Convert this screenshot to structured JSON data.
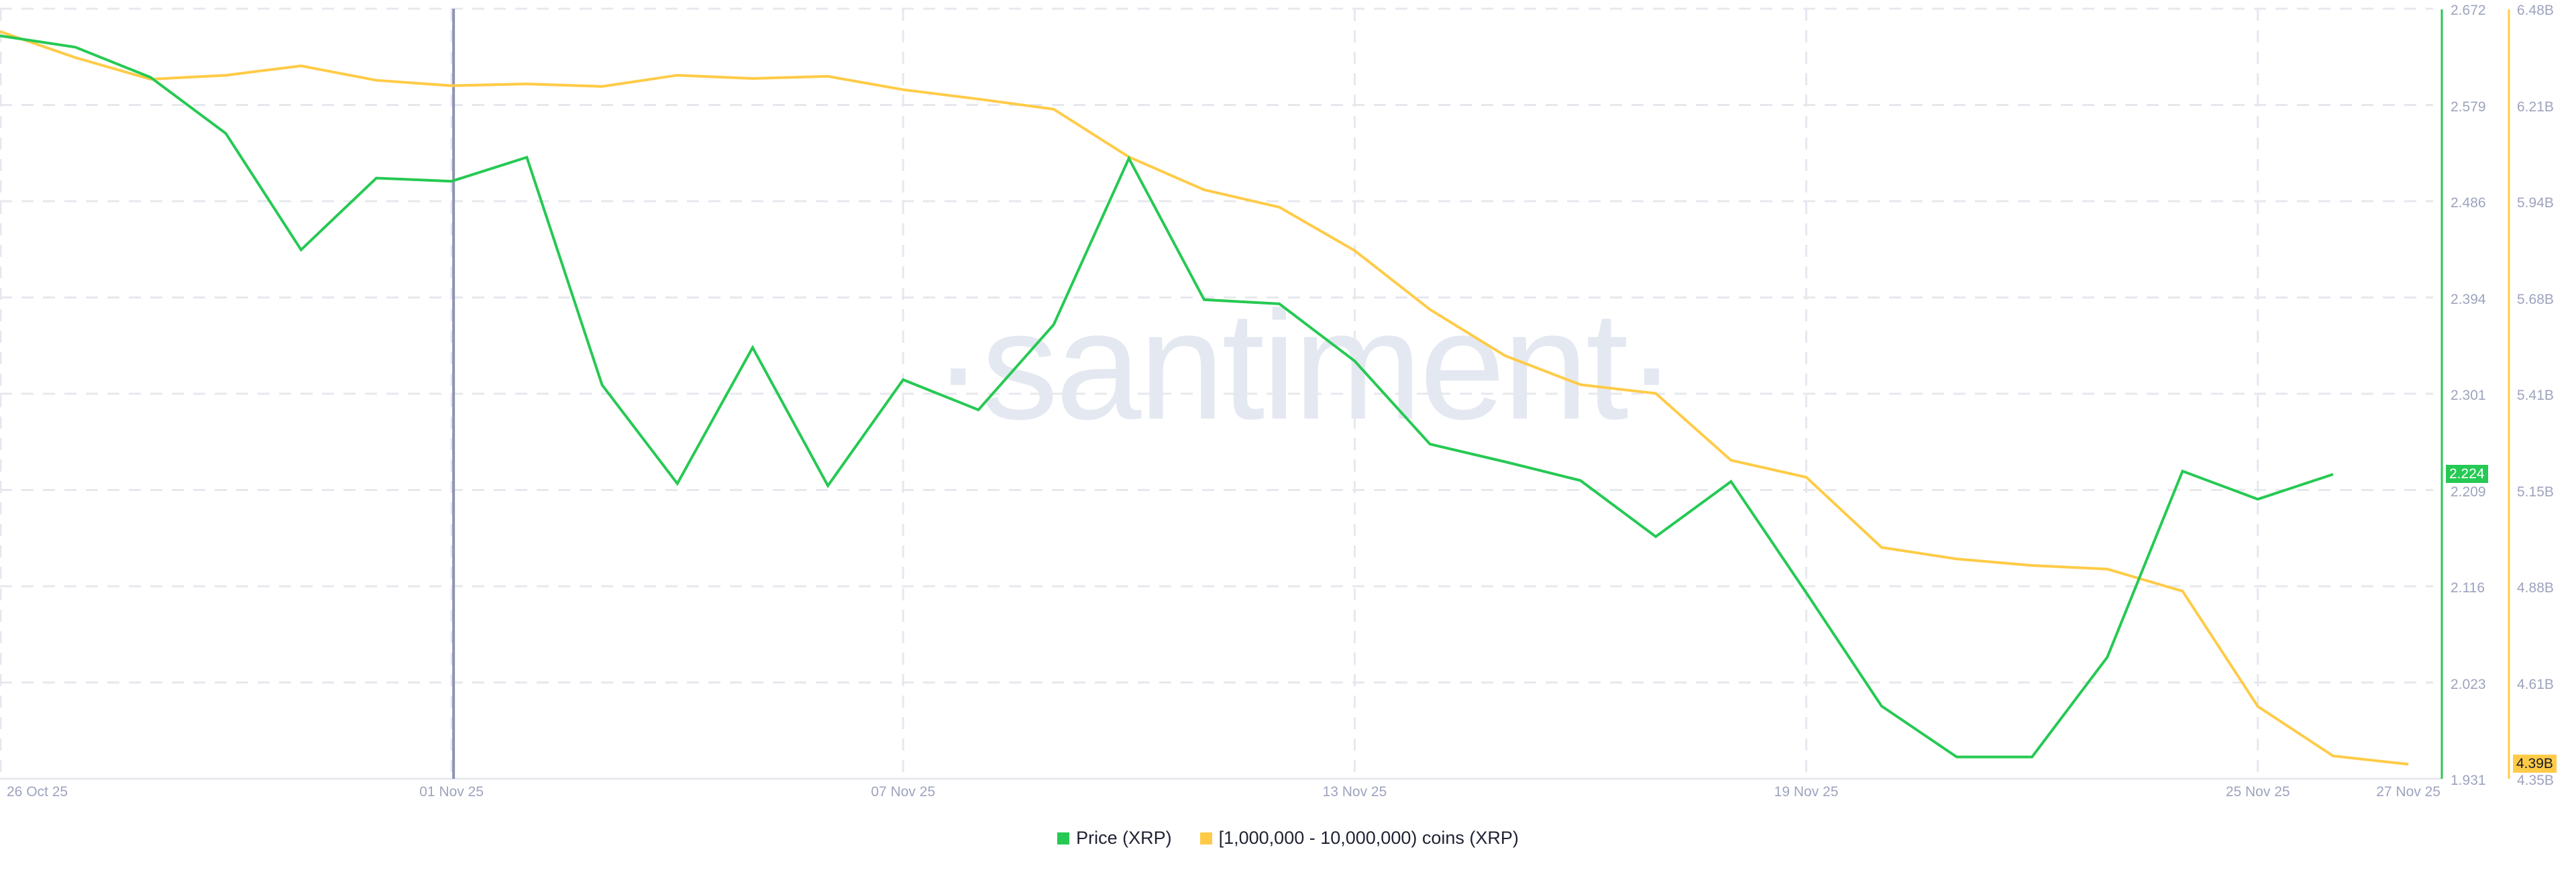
{
  "watermark": "·santiment·",
  "legend": {
    "items": [
      {
        "label": "Price (XRP)",
        "color": "#26c953"
      },
      {
        "label": "[1,000,000 - 10,000,000) coins (XRP)",
        "color": "#ffcb47"
      }
    ]
  },
  "colors": {
    "price": "#26c953",
    "holdings": "#ffcb47",
    "hover_line": "#8e92b6",
    "grid": "#e6e8ee",
    "axis_text": "#9ea3bd"
  },
  "badges": {
    "price": "2.224",
    "holdings": "4.39B"
  },
  "hover_date": "01 Nov 25",
  "chart_data": {
    "type": "line",
    "title": "",
    "xlabel": "",
    "x_ticks": [
      "26 Oct 25",
      "01 Nov 25",
      "07 Nov 25",
      "13 Nov 25",
      "19 Nov 25",
      "25 Nov 25",
      "27 Nov 25"
    ],
    "x_tick_day_index": [
      0,
      6,
      12,
      18,
      24,
      30,
      32
    ],
    "x": [
      "26 Oct",
      "27 Oct",
      "28 Oct",
      "29 Oct",
      "30 Oct",
      "31 Oct",
      "01 Nov",
      "02 Nov",
      "03 Nov",
      "04 Nov",
      "05 Nov",
      "06 Nov",
      "07 Nov",
      "08 Nov",
      "09 Nov",
      "10 Nov",
      "11 Nov",
      "12 Nov",
      "13 Nov",
      "14 Nov",
      "15 Nov",
      "16 Nov",
      "17 Nov",
      "18 Nov",
      "19 Nov",
      "20 Nov",
      "21 Nov",
      "22 Nov",
      "23 Nov",
      "24 Nov",
      "25 Nov",
      "26 Nov",
      "27 Nov"
    ],
    "series": [
      {
        "name": "Price (XRP)",
        "axis": "left-of-pair",
        "color": "#26c953",
        "values": [
          2.646,
          2.635,
          2.606,
          2.552,
          2.44,
          2.509,
          2.506,
          2.529,
          2.31,
          2.215,
          2.346,
          2.213,
          2.315,
          2.286,
          2.368,
          2.528,
          2.392,
          2.388,
          2.333,
          2.253,
          2.236,
          2.218,
          2.164,
          2.217,
          2.11,
          2.001,
          1.952,
          1.952,
          2.048,
          2.227,
          2.2,
          2.224,
          null
        ]
      },
      {
        "name": "[1,000,000 - 10,000,000) coins (XRP)",
        "axis": "right",
        "color": "#ffcb47",
        "unit": "B",
        "values": [
          6.417,
          6.345,
          6.285,
          6.296,
          6.322,
          6.282,
          6.267,
          6.272,
          6.265,
          6.296,
          6.287,
          6.293,
          6.256,
          6.23,
          6.202,
          6.07,
          5.979,
          5.931,
          5.811,
          5.648,
          5.52,
          5.44,
          5.416,
          5.231,
          5.184,
          4.99,
          4.958,
          4.94,
          4.93,
          4.869,
          4.55,
          4.413,
          4.39
        ]
      }
    ],
    "y_axes": [
      {
        "name": "Price",
        "ticks": [
          "2.672",
          "2.579",
          "2.486",
          "2.394",
          "2.301",
          "2.209",
          "2.116",
          "2.023",
          "1.931"
        ],
        "ylim": [
          1.931,
          2.672
        ]
      },
      {
        "name": "Holdings",
        "ticks": [
          "6.48B",
          "6.21B",
          "5.94B",
          "5.68B",
          "5.41B",
          "5.15B",
          "4.88B",
          "4.61B",
          "4.35B"
        ],
        "ylim": [
          4.35,
          6.48
        ]
      }
    ],
    "grid": true,
    "legend_position": "bottom-center"
  }
}
